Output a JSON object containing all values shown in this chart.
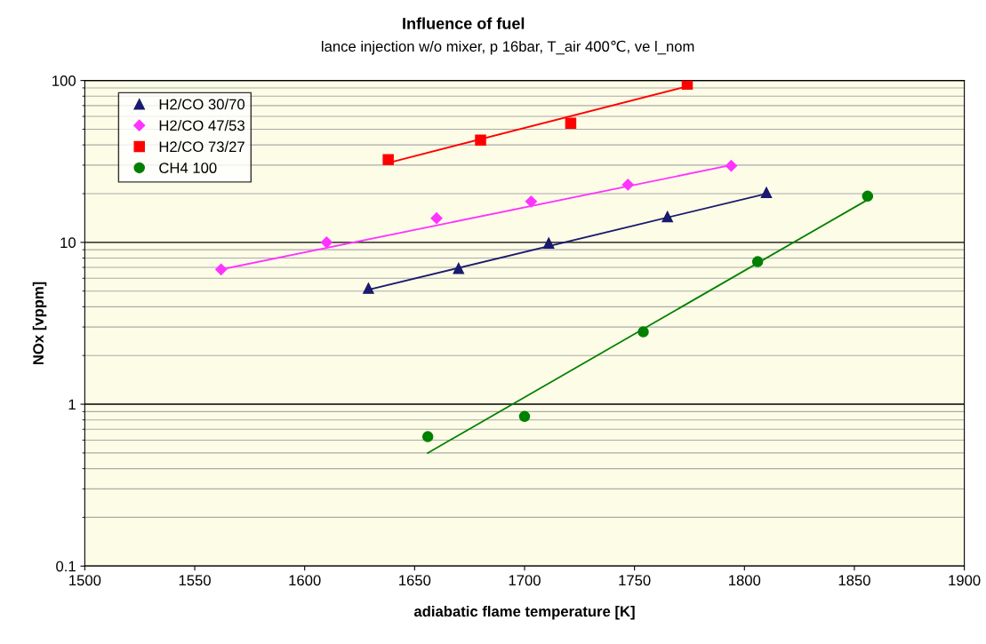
{
  "chart_data": {
    "type": "scatter",
    "title": "Influence of fuel",
    "subtitle": "lance injection w/o mixer, p 16bar, T_air 400℃, ve l_nom",
    "xlabel": "adiabatic flame temperature [K]",
    "ylabel": "NOx [vppm]",
    "log": "y",
    "xlim": [
      1500,
      1900
    ],
    "xticks": [
      1500,
      1550,
      1600,
      1650,
      1700,
      1750,
      1800,
      1850,
      1900
    ],
    "ylim": [
      0.1,
      100
    ],
    "yticks": [
      0.1,
      1,
      10,
      100
    ],
    "grid": "y",
    "legend": "top left",
    "series": [
      {
        "name": "H2/CO 30/70",
        "color": "#1a1a6e",
        "marker": "triangle",
        "x": [
          1629,
          1670,
          1711,
          1765,
          1810
        ],
        "values": [
          5.2,
          6.9,
          9.9,
          14.4,
          20.3
        ]
      },
      {
        "name": "H2/CO 47/53",
        "color": "#ff33ff",
        "marker": "diamond",
        "x": [
          1562,
          1610,
          1660,
          1703,
          1747,
          1794
        ],
        "values": [
          6.8,
          10,
          14.1,
          17.9,
          22.7,
          29.7
        ]
      },
      {
        "name": "H2/CO 73/27",
        "color": "#ff0000",
        "marker": "square",
        "x": [
          1638,
          1680,
          1721,
          1774
        ],
        "values": [
          32.4,
          42.8,
          54.5,
          95
        ]
      },
      {
        "name": "CH4 100",
        "color": "#008000",
        "marker": "circle",
        "x": [
          1656,
          1700,
          1754,
          1806,
          1856
        ],
        "values": [
          0.63,
          0.84,
          2.8,
          7.6,
          19.3
        ]
      },
      {
        "type": "line",
        "color": "#1a1a6e",
        "x": [
          1629,
          1810
        ],
        "values": [
          5.1,
          20
        ]
      },
      {
        "type": "line",
        "color": "#ff33ff",
        "x": [
          1562,
          1794
        ],
        "values": [
          6.8,
          30
        ]
      },
      {
        "type": "line",
        "color": "#ff0000",
        "x": [
          1638,
          1774
        ],
        "values": [
          31,
          92
        ]
      },
      {
        "type": "line",
        "color": "#008000",
        "x": [
          1656,
          1858
        ],
        "values": [
          0.5,
          19
        ]
      }
    ]
  }
}
